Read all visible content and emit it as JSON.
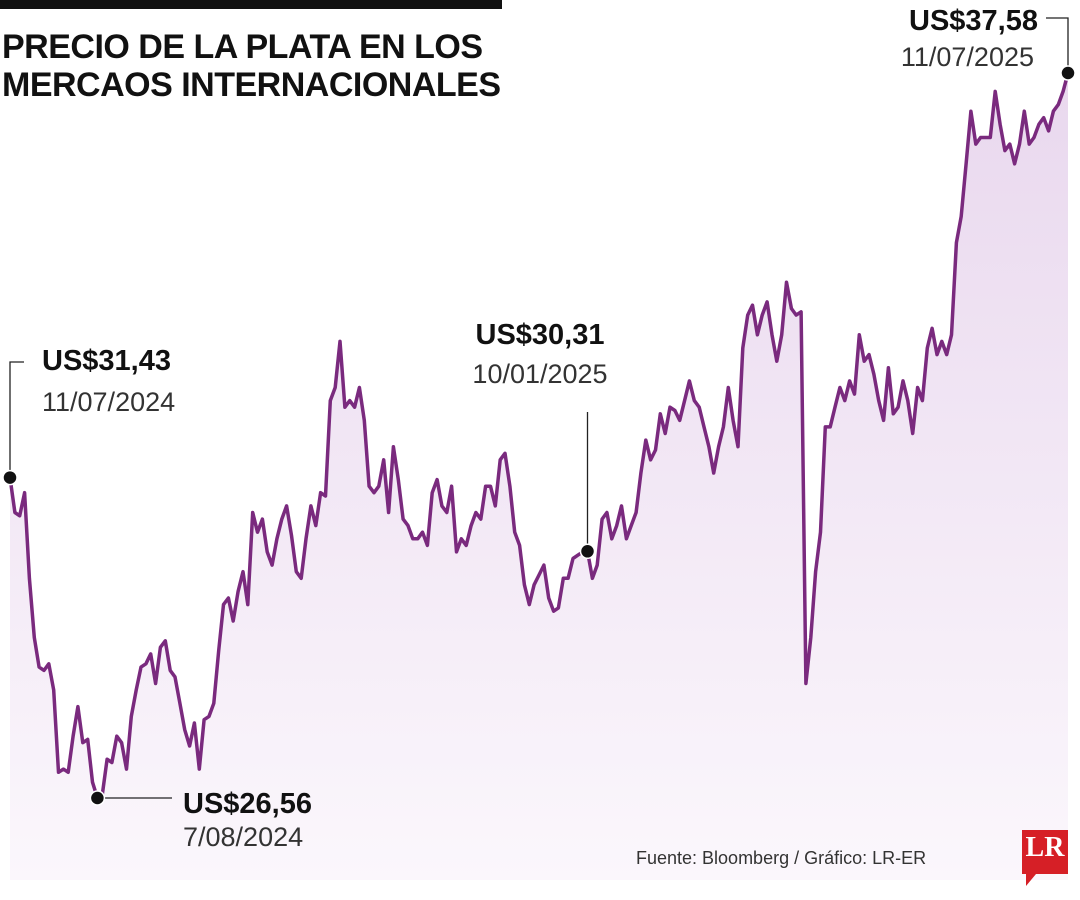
{
  "title_lines": [
    "PRECIO DE LA PLATA EN LOS",
    "MERCAOS INTERNACIONALES"
  ],
  "source": "Fuente: Bloomberg / Gráfico: LR-ER",
  "logo": "LR",
  "colors": {
    "line": "#7a2a7e",
    "fill": "#efe3f2",
    "text": "#111111",
    "logo": "#d61f26"
  },
  "chart_data": {
    "type": "area",
    "title": "PRECIO DE LA PLATA EN LOS MERCAOS INTERNACIONALES",
    "xlabel": "",
    "ylabel": "",
    "unit": "US$",
    "x_range": [
      "11/07/2024",
      "11/07/2025"
    ],
    "ylim": [
      26.0,
      38.0
    ],
    "grid": false,
    "series": [
      {
        "values": [
          31.43,
          30.9,
          30.85,
          31.2,
          29.9,
          29.0,
          28.55,
          28.5,
          28.6,
          28.2,
          26.95,
          27.0,
          26.95,
          27.5,
          27.95,
          27.4,
          27.45,
          26.8,
          26.56,
          26.6,
          27.15,
          27.1,
          27.5,
          27.4,
          27.0,
          27.8,
          28.2,
          28.55,
          28.6,
          28.75,
          28.3,
          28.85,
          28.95,
          28.5,
          28.4,
          28.0,
          27.6,
          27.35,
          27.7,
          27.0,
          27.75,
          27.8,
          28.0,
          28.8,
          29.5,
          29.6,
          29.25,
          29.7,
          30.0,
          29.5,
          30.9,
          30.6,
          30.8,
          30.3,
          30.1,
          30.5,
          30.8,
          31.0,
          30.55,
          30.0,
          29.9,
          30.5,
          31.0,
          30.7,
          31.2,
          31.15,
          32.6,
          32.8,
          33.5,
          32.5,
          32.6,
          32.5,
          32.8,
          32.3,
          31.3,
          31.2,
          31.3,
          31.7,
          30.9,
          31.9,
          31.4,
          30.8,
          30.7,
          30.5,
          30.5,
          30.6,
          30.4,
          31.2,
          31.4,
          31.0,
          30.9,
          31.3,
          30.3,
          30.5,
          30.4,
          30.7,
          30.9,
          30.8,
          31.3,
          31.3,
          31.0,
          31.7,
          31.8,
          31.3,
          30.6,
          30.4,
          29.8,
          29.5,
          29.8,
          29.95,
          30.1,
          29.6,
          29.4,
          29.45,
          29.9,
          29.9,
          30.2,
          30.25,
          30.3,
          30.31,
          29.9,
          30.1,
          30.8,
          30.9,
          30.5,
          30.7,
          31.0,
          30.5,
          30.7,
          30.9,
          31.5,
          32.0,
          31.7,
          31.85,
          32.4,
          32.1,
          32.5,
          32.45,
          32.3,
          32.6,
          32.9,
          32.6,
          32.5,
          32.2,
          31.9,
          31.5,
          31.9,
          32.2,
          32.8,
          32.3,
          31.9,
          33.4,
          33.9,
          34.05,
          33.6,
          33.9,
          34.1,
          33.6,
          33.2,
          33.6,
          34.4,
          34.0,
          33.9,
          33.95,
          28.3,
          29.0,
          30.0,
          30.6,
          32.2,
          32.2,
          32.5,
          32.8,
          32.6,
          32.9,
          32.7,
          33.6,
          33.2,
          33.3,
          33.0,
          32.6,
          32.3,
          33.1,
          32.4,
          32.5,
          32.9,
          32.6,
          32.1,
          32.8,
          32.6,
          33.4,
          33.7,
          33.3,
          33.5,
          33.3,
          33.6,
          35.0,
          35.4,
          36.2,
          37.0,
          36.5,
          36.6,
          36.6,
          36.6,
          37.3,
          36.8,
          36.4,
          36.5,
          36.2,
          36.5,
          37.0,
          36.5,
          36.6,
          36.8,
          36.9,
          36.7,
          37.0,
          37.1,
          37.3,
          37.58
        ]
      }
    ],
    "annotations": [
      {
        "value": "US$31,43",
        "date": "11/07/2024"
      },
      {
        "value": "US$26,56",
        "date": "7/08/2024"
      },
      {
        "value": "US$30,31",
        "date": "10/01/2025"
      },
      {
        "value": "US$37,58",
        "date": "11/07/2025"
      }
    ]
  }
}
